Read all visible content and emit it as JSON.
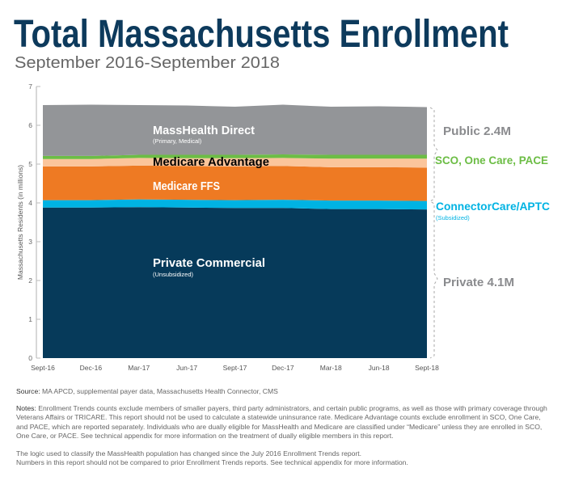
{
  "title": "Total Massachusetts Enrollment",
  "subtitle": "September 2016-September 2018",
  "source_label": "Source:",
  "source_text": "MA APCD, supplemental payer data, Massachusetts Health Connector, CMS",
  "notes_label": "Notes:",
  "notes_text": "Enrollment Trends counts exclude members of smaller payers, third party administrators, and certain public programs, as well as those with primary coverage through Veterans Affairs or TRICARE. This report should not be used to calculate a statewide uninsurance rate. Medicare Advantage counts exclude enrollment in SCO, One Care, and PACE, which are reported separately. Individuals who are dually eligible for MassHealth and Medicare are classified under “Medicare” unless they are enrolled in SCO, One Care, or PACE. See technical appendix for more information on the treatment of dually eligible members in this report.",
  "logic_note_1": "The logic used to classify the MassHealth population has changed since the July 2016 Enrollment Trends report.",
  "logic_note_2": "Numbers in this report should not be compared to prior Enrollment Trends reports. See technical appendix for more information.",
  "chart_data": {
    "type": "area",
    "stacked": true,
    "ylabel": "Massachusetts Residents (in millions)",
    "ylim": [
      0,
      7
    ],
    "yticks": [
      "0",
      "1",
      "2",
      "3",
      "4",
      "5",
      "6",
      "7"
    ],
    "categories": [
      "Sept-16",
      "Dec-16",
      "Mar-17",
      "Jun-17",
      "Sept-17",
      "Dec-17",
      "Mar-18",
      "Jun-18",
      "Sept-18"
    ],
    "series": [
      {
        "name": "Private Commercial",
        "sublabel": "(Unsubsidized)",
        "color": "#063a5a",
        "label_color": "#ffffff",
        "values": [
          3.88,
          3.88,
          3.89,
          3.88,
          3.87,
          3.87,
          3.84,
          3.84,
          3.83
        ]
      },
      {
        "name": "ConnectorCare/APTC",
        "sublabel": "(Subsidized)",
        "color": "#00b3e3",
        "label_color": "#00b3e3",
        "values": [
          0.19,
          0.19,
          0.2,
          0.2,
          0.2,
          0.21,
          0.22,
          0.22,
          0.22
        ]
      },
      {
        "name": "Medicare FFS",
        "color": "#ee7a23",
        "label_color": "#ffffff",
        "values": [
          0.87,
          0.87,
          0.87,
          0.87,
          0.87,
          0.87,
          0.86,
          0.86,
          0.86
        ]
      },
      {
        "name": "Medicare Advantage",
        "color": "#fbc59b",
        "label_color": "#000000",
        "values": [
          0.19,
          0.19,
          0.2,
          0.2,
          0.21,
          0.21,
          0.22,
          0.22,
          0.23
        ]
      },
      {
        "name": "SCO, One Care, PACE",
        "color": "#6cbd45",
        "label_color": "#6cbd45",
        "values": [
          0.08,
          0.08,
          0.08,
          0.09,
          0.09,
          0.09,
          0.1,
          0.1,
          0.1
        ]
      },
      {
        "name": "MassHealth Direct",
        "sublabel": "(Primary, Medical)",
        "color": "#939598",
        "label_color": "#ffffff",
        "values": [
          1.31,
          1.32,
          1.28,
          1.27,
          1.24,
          1.28,
          1.24,
          1.25,
          1.23
        ]
      }
    ],
    "brackets": [
      {
        "label": "Public 2.4M",
        "color": "#8a8b8e"
      },
      {
        "label": "Private 4.1M",
        "color": "#8a8b8e"
      }
    ],
    "grid": false,
    "legend": "inline labels"
  }
}
